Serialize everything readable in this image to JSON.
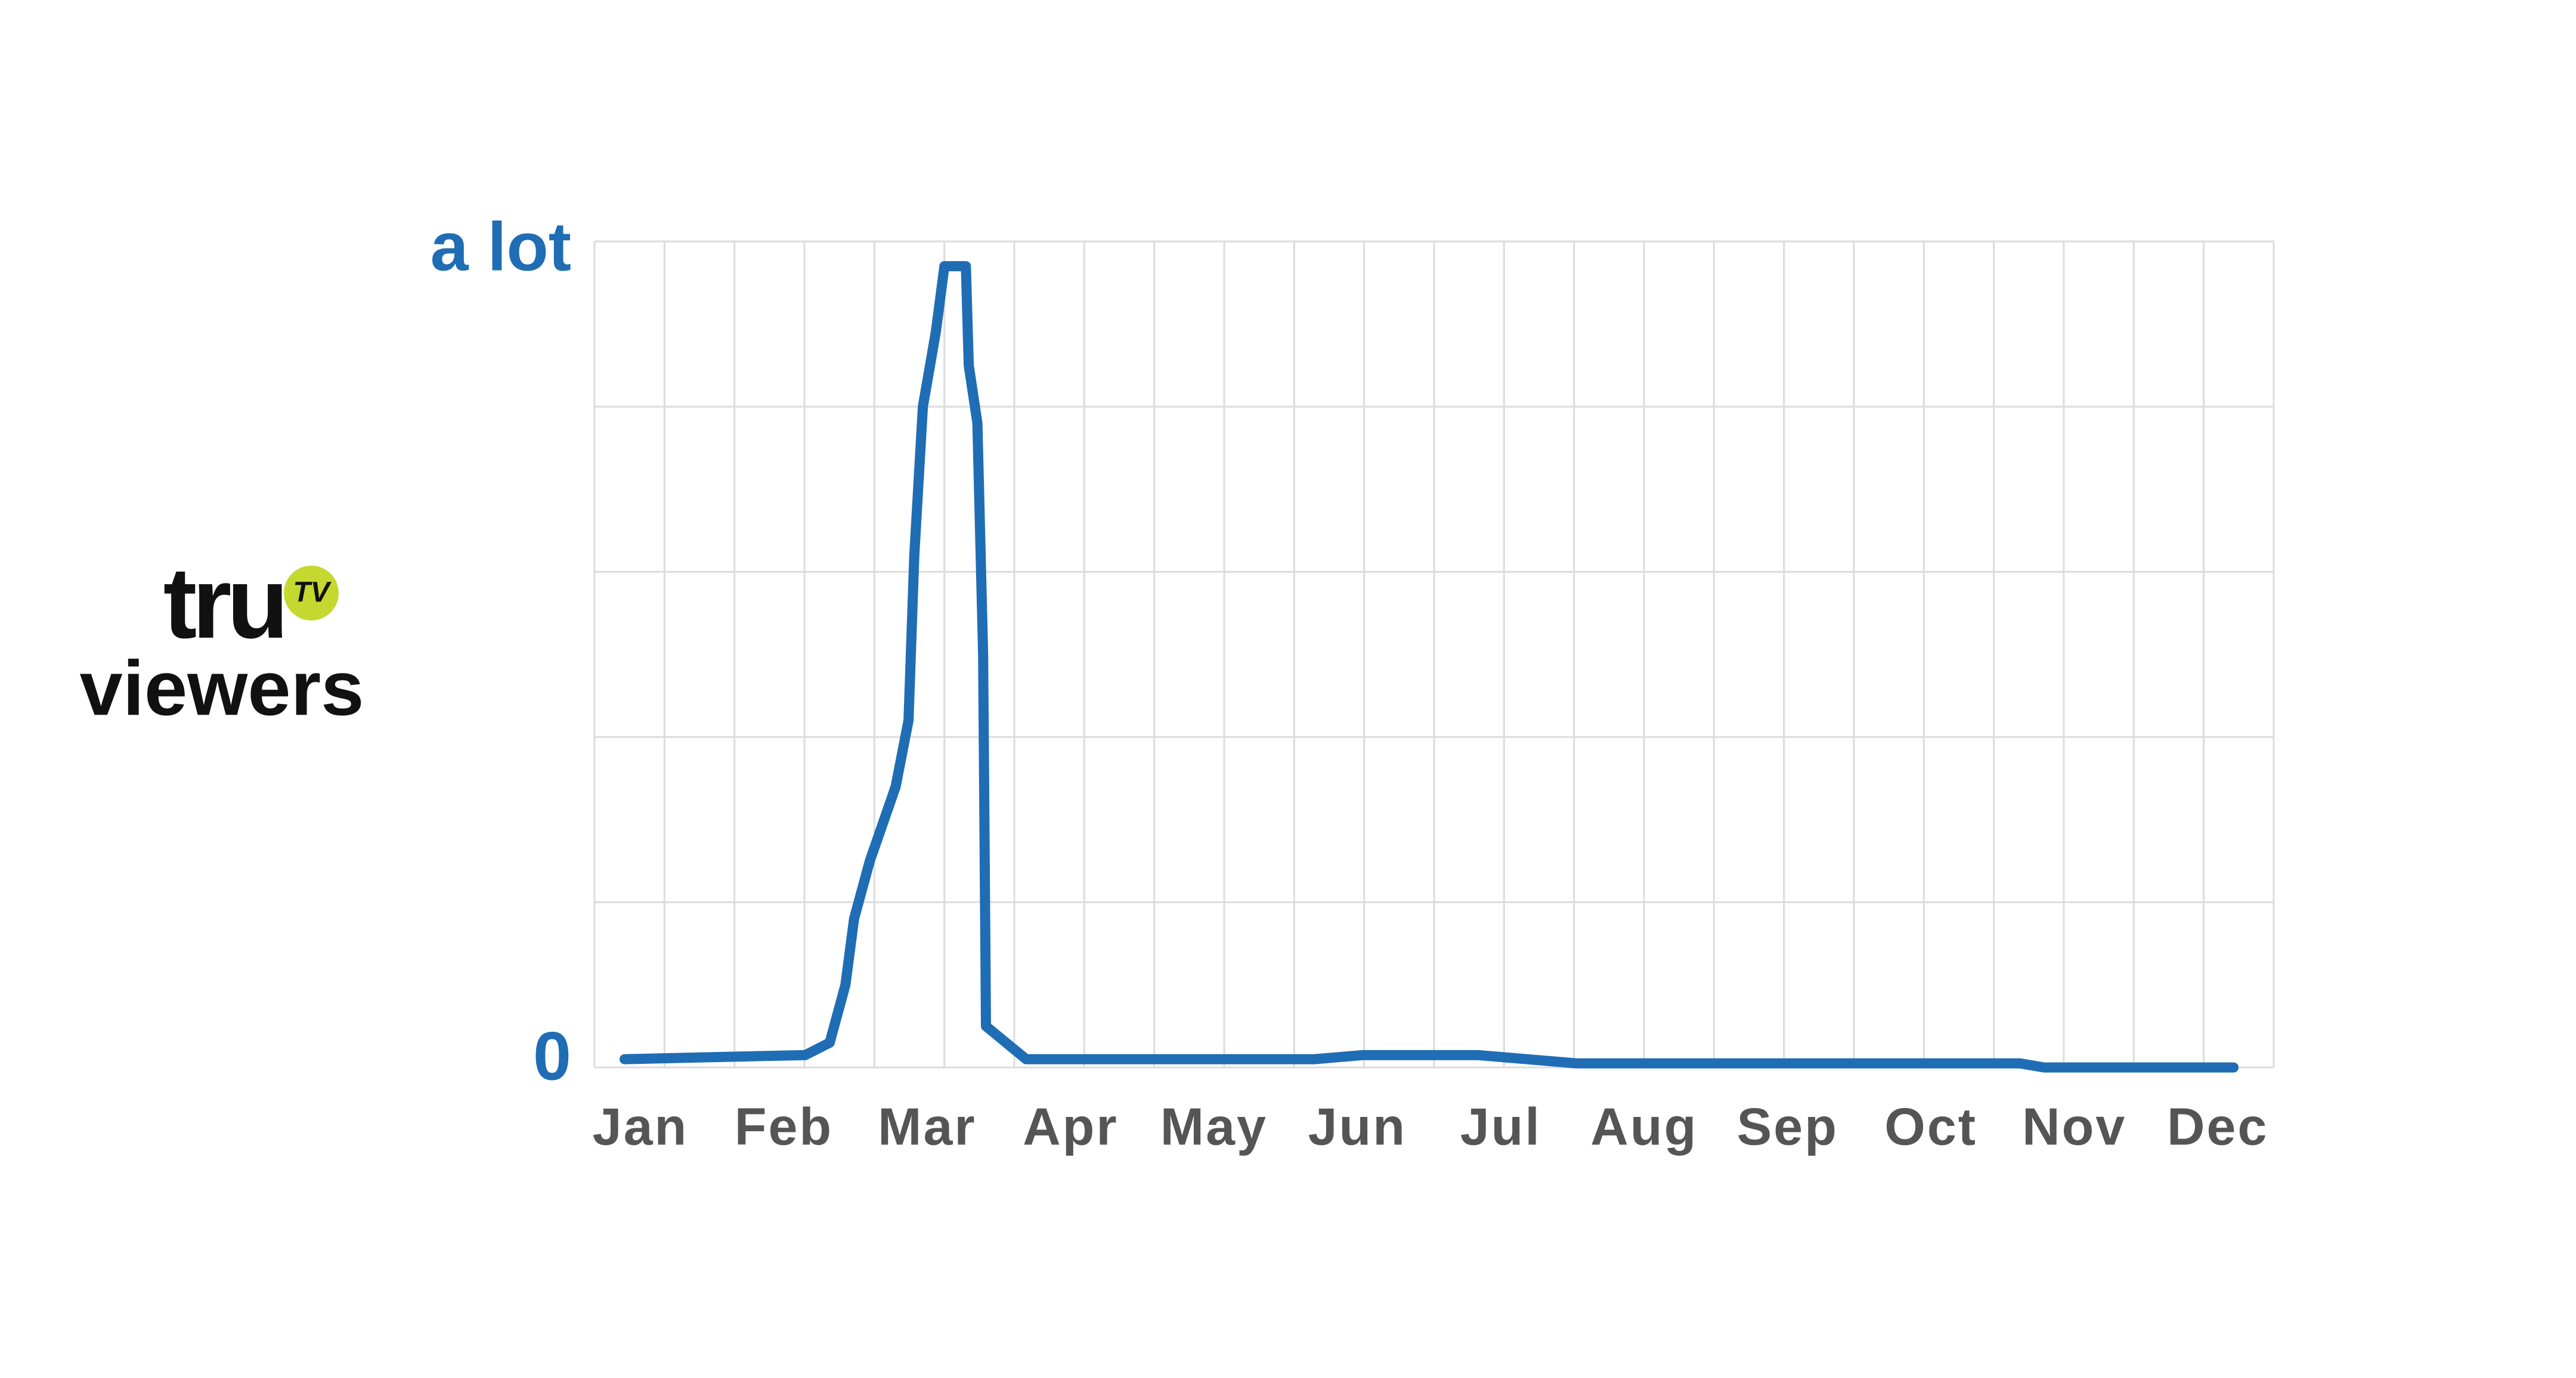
{
  "chart_data": {
    "type": "line",
    "ylabel_logo": "tru",
    "ylabel_logo_badge": "TV",
    "ylabel": "viewers",
    "x": [
      -0.11,
      1.15,
      1.32,
      1.43,
      1.49,
      1.6,
      1.78,
      1.87,
      1.91,
      1.97,
      2.06,
      2.12,
      2.27,
      2.29,
      2.35,
      2.39,
      2.41,
      2.55,
      2.69,
      4.7,
      5.04,
      5.84,
      6.53,
      9.62,
      9.79,
      11.11
    ],
    "values": [
      0.01,
      0.015,
      0.03,
      0.1,
      0.18,
      0.25,
      0.34,
      0.42,
      0.62,
      0.8,
      0.89,
      0.97,
      0.97,
      0.85,
      0.78,
      0.5,
      0.05,
      0.03,
      0.01,
      0.01,
      0.015,
      0.015,
      0.005,
      0.005,
      0,
      0
    ],
    "color": "#1f6db4",
    "xlim": [
      -0.32,
      11.39
    ],
    "xticks": [
      {
        "value": 0,
        "label": "Jan"
      },
      {
        "value": 1,
        "label": "Feb"
      },
      {
        "value": 2,
        "label": "Mar"
      },
      {
        "value": 3,
        "label": "Apr"
      },
      {
        "value": 4,
        "label": "May"
      },
      {
        "value": 5,
        "label": "Jun"
      },
      {
        "value": 6,
        "label": "Jul"
      },
      {
        "value": 7,
        "label": "Aug"
      },
      {
        "value": 8,
        "label": "Sep"
      },
      {
        "value": 9,
        "label": "Oct"
      },
      {
        "value": 10,
        "label": "Nov"
      },
      {
        "value": 11,
        "label": "Dec"
      }
    ],
    "ylim": [
      0,
      1
    ],
    "yticks": [
      0,
      {
        "value": 1,
        "label": "a lot"
      }
    ],
    "grid": true,
    "xgrid_divisions": 24,
    "ygrid_divisions": 5
  }
}
